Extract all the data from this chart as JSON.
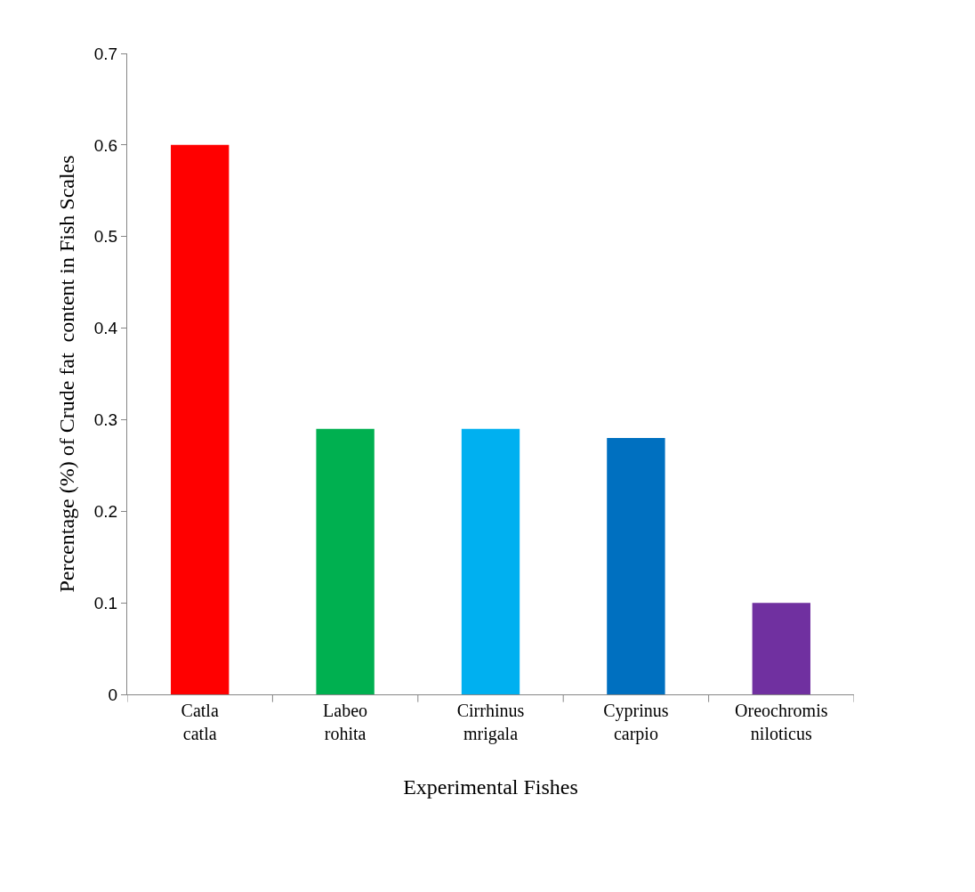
{
  "chart_data": {
    "type": "bar",
    "xlabel": "Experimental Fishes",
    "ylabel": "Percentage (%) of Crude fat  content in Fish Scales",
    "categories": [
      "Catla\ncatla",
      "Labeo\nrohita",
      "Cirrhinus\nmrigala",
      "Cyprinus\ncarpio",
      "Oreochromis\nniloticus"
    ],
    "values": [
      0.6,
      0.29,
      0.29,
      0.28,
      0.1
    ],
    "colors": [
      "#ff0000",
      "#00b050",
      "#00b0f0",
      "#0070c0",
      "#7030a0"
    ],
    "ylim": [
      0,
      0.7
    ],
    "yticks": [
      0,
      0.1,
      0.2,
      0.3,
      0.4,
      0.5,
      0.6,
      0.7
    ]
  }
}
